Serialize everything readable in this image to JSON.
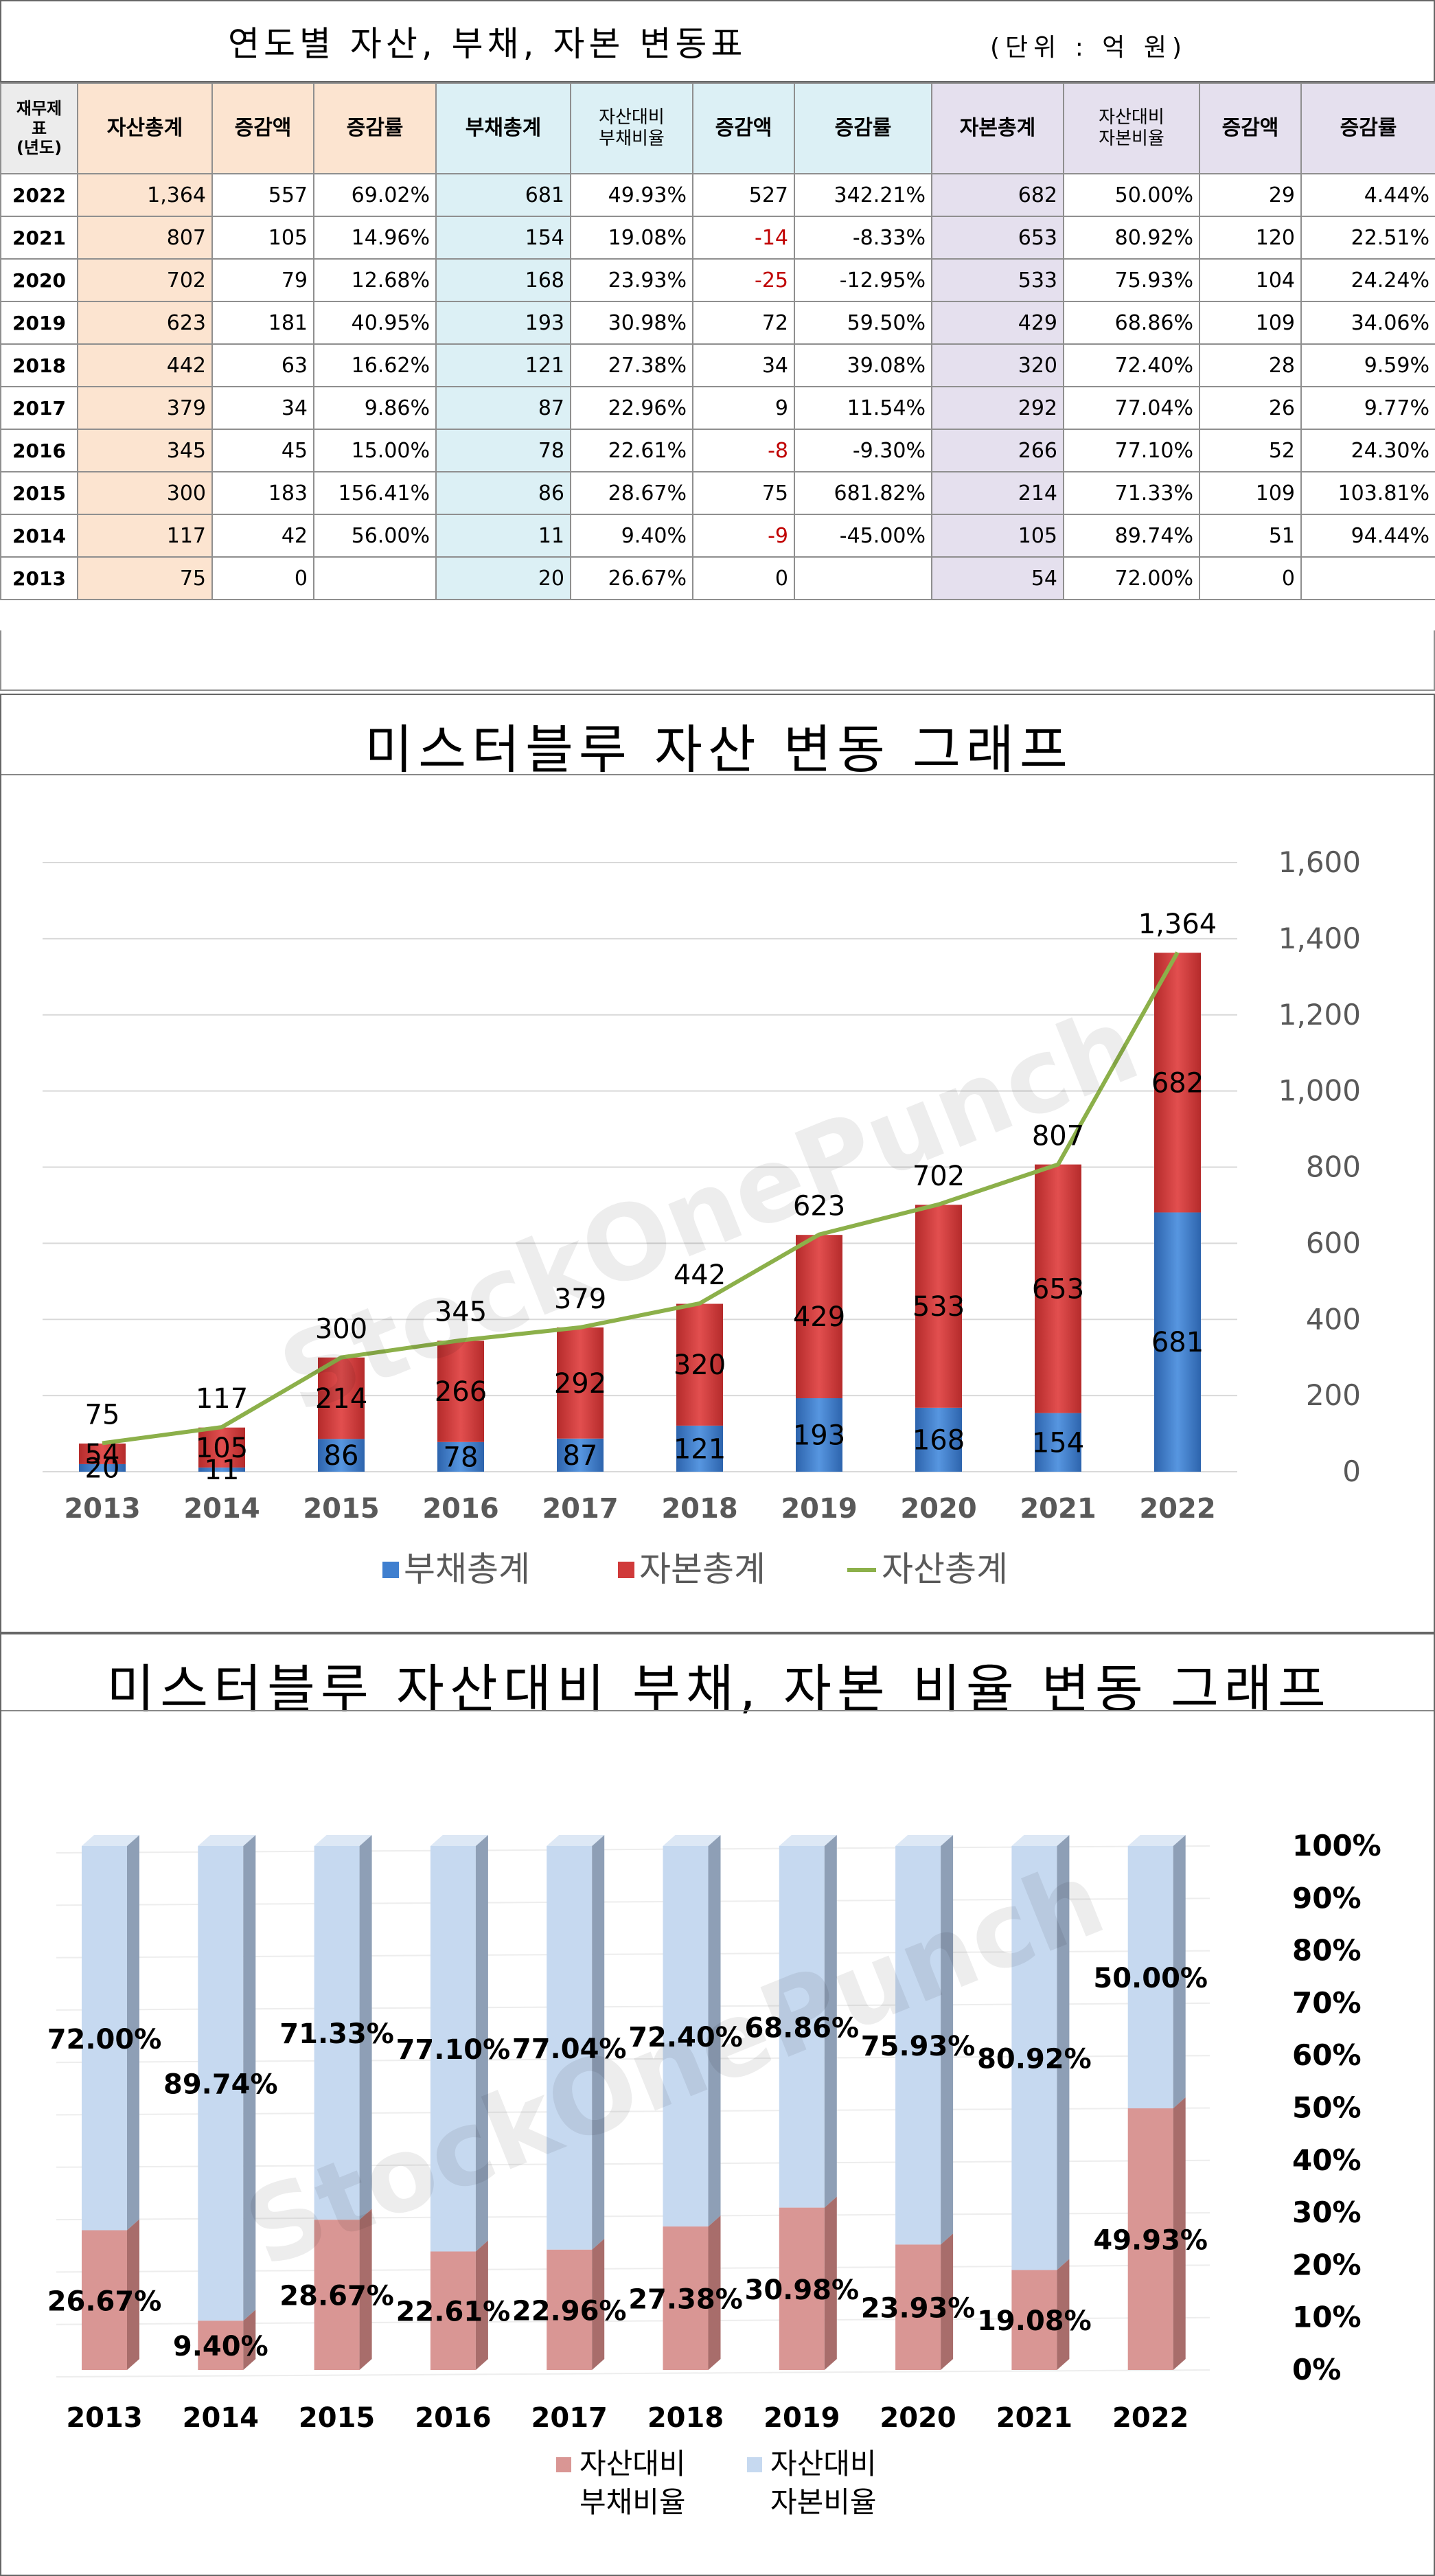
{
  "table": {
    "title": "연도별 자산, 부채, 자본 변동표",
    "unit": "(단위 : 억 원)",
    "headers": [
      "재무제표\n(년도)",
      "자산총계",
      "증감액",
      "증감률",
      "부채총계",
      "자산대비\n부채비율",
      "증감액",
      "증감률",
      "자본총계",
      "자산대비\n자본비율",
      "증감액",
      "증감률"
    ],
    "rows": [
      {
        "year": "2022",
        "asset": "1,364",
        "asset_chg": "557",
        "asset_rate": "69.02%",
        "debt": "681",
        "debt_ratio": "49.93%",
        "debt_chg": "527",
        "debt_rate": "342.21%",
        "equity": "682",
        "equity_ratio": "50.00%",
        "equity_chg": "29",
        "equity_rate": "4.44%"
      },
      {
        "year": "2021",
        "asset": "807",
        "asset_chg": "105",
        "asset_rate": "14.96%",
        "debt": "154",
        "debt_ratio": "19.08%",
        "debt_chg": "-14",
        "debt_rate": "-8.33%",
        "equity": "653",
        "equity_ratio": "80.92%",
        "equity_chg": "120",
        "equity_rate": "22.51%"
      },
      {
        "year": "2020",
        "asset": "702",
        "asset_chg": "79",
        "asset_rate": "12.68%",
        "debt": "168",
        "debt_ratio": "23.93%",
        "debt_chg": "-25",
        "debt_rate": "-12.95%",
        "equity": "533",
        "equity_ratio": "75.93%",
        "equity_chg": "104",
        "equity_rate": "24.24%"
      },
      {
        "year": "2019",
        "asset": "623",
        "asset_chg": "181",
        "asset_rate": "40.95%",
        "debt": "193",
        "debt_ratio": "30.98%",
        "debt_chg": "72",
        "debt_rate": "59.50%",
        "equity": "429",
        "equity_ratio": "68.86%",
        "equity_chg": "109",
        "equity_rate": "34.06%"
      },
      {
        "year": "2018",
        "asset": "442",
        "asset_chg": "63",
        "asset_rate": "16.62%",
        "debt": "121",
        "debt_ratio": "27.38%",
        "debt_chg": "34",
        "debt_rate": "39.08%",
        "equity": "320",
        "equity_ratio": "72.40%",
        "equity_chg": "28",
        "equity_rate": "9.59%"
      },
      {
        "year": "2017",
        "asset": "379",
        "asset_chg": "34",
        "asset_rate": "9.86%",
        "debt": "87",
        "debt_ratio": "22.96%",
        "debt_chg": "9",
        "debt_rate": "11.54%",
        "equity": "292",
        "equity_ratio": "77.04%",
        "equity_chg": "26",
        "equity_rate": "9.77%"
      },
      {
        "year": "2016",
        "asset": "345",
        "asset_chg": "45",
        "asset_rate": "15.00%",
        "debt": "78",
        "debt_ratio": "22.61%",
        "debt_chg": "-8",
        "debt_rate": "-9.30%",
        "equity": "266",
        "equity_ratio": "77.10%",
        "equity_chg": "52",
        "equity_rate": "24.30%"
      },
      {
        "year": "2015",
        "asset": "300",
        "asset_chg": "183",
        "asset_rate": "156.41%",
        "debt": "86",
        "debt_ratio": "28.67%",
        "debt_chg": "75",
        "debt_rate": "681.82%",
        "equity": "214",
        "equity_ratio": "71.33%",
        "equity_chg": "109",
        "equity_rate": "103.81%"
      },
      {
        "year": "2014",
        "asset": "117",
        "asset_chg": "42",
        "asset_rate": "56.00%",
        "debt": "11",
        "debt_ratio": "9.40%",
        "debt_chg": "-9",
        "debt_rate": "-45.00%",
        "equity": "105",
        "equity_ratio": "89.74%",
        "equity_chg": "51",
        "equity_rate": "94.44%"
      },
      {
        "year": "2013",
        "asset": "75",
        "asset_chg": "0",
        "asset_rate": "",
        "debt": "20",
        "debt_ratio": "26.67%",
        "debt_chg": "0",
        "debt_rate": "",
        "equity": "54",
        "equity_ratio": "72.00%",
        "equity_chg": "0",
        "equity_rate": ""
      }
    ]
  },
  "watermark": "StockOnePunch",
  "colors": {
    "debt": "#3f7fcf",
    "equity": "#d03a3a",
    "asset_line": "#8cb04a",
    "debt_ratio": "#d99694",
    "equity_ratio": "#c6d9f0"
  },
  "chart_data": [
    {
      "type": "bar",
      "title": "미스터블루 자산 변동 그래프",
      "stacked": true,
      "categories": [
        "2013",
        "2014",
        "2015",
        "2016",
        "2017",
        "2018",
        "2019",
        "2020",
        "2021",
        "2022"
      ],
      "series": [
        {
          "name": "부채총계",
          "values": [
            20,
            11,
            86,
            78,
            87,
            121,
            193,
            168,
            154,
            681
          ]
        },
        {
          "name": "자본총계",
          "values": [
            54,
            105,
            214,
            266,
            292,
            320,
            429,
            533,
            653,
            682
          ]
        },
        {
          "name": "자산총계",
          "type": "line",
          "values": [
            75,
            117,
            300,
            345,
            379,
            442,
            623,
            702,
            807,
            1364
          ],
          "labels": [
            "75",
            "117",
            "300",
            "345",
            "379",
            "442",
            "623",
            "702",
            "807",
            "1,364"
          ]
        }
      ],
      "ylim": [
        0,
        1600
      ],
      "yticks": [
        "0",
        "200",
        "400",
        "600",
        "800",
        "1,000",
        "1,200",
        "1,400",
        "1,600"
      ],
      "ytick_values": [
        0,
        200,
        400,
        600,
        800,
        1000,
        1200,
        1400,
        1600
      ],
      "y_axis_side": "right",
      "grid": true,
      "legend_position": "bottom"
    },
    {
      "type": "bar",
      "title": "미스터블루 자산대비 부채, 자본 비율 변동 그래프",
      "stacked": true,
      "percent": true,
      "categories": [
        "2013",
        "2014",
        "2015",
        "2016",
        "2017",
        "2018",
        "2019",
        "2020",
        "2021",
        "2022"
      ],
      "series": [
        {
          "name": "자산대비\n부채비율",
          "values": [
            26.67,
            9.4,
            28.67,
            22.61,
            22.96,
            27.38,
            30.98,
            23.93,
            19.08,
            49.93
          ],
          "labels": [
            "26.67%",
            "9.40%",
            "28.67%",
            "22.61%",
            "22.96%",
            "27.38%",
            "30.98%",
            "23.93%",
            "19.08%",
            "49.93%"
          ]
        },
        {
          "name": "자산대비\n자본비율",
          "values": [
            72.0,
            89.74,
            71.33,
            77.1,
            77.04,
            72.4,
            68.86,
            75.93,
            80.92,
            50.0
          ],
          "labels": [
            "72.00%",
            "89.74%",
            "71.33%",
            "77.10%",
            "77.04%",
            "72.40%",
            "68.86%",
            "75.93%",
            "80.92%",
            "50.00%"
          ]
        }
      ],
      "ylim": [
        0,
        100
      ],
      "yticks": [
        "0%",
        "10%",
        "20%",
        "30%",
        "40%",
        "50%",
        "60%",
        "70%",
        "80%",
        "90%",
        "100%"
      ],
      "ytick_values": [
        0,
        10,
        20,
        30,
        40,
        50,
        60,
        70,
        80,
        90,
        100
      ],
      "y_axis_side": "right",
      "legend_position": "bottom"
    }
  ]
}
